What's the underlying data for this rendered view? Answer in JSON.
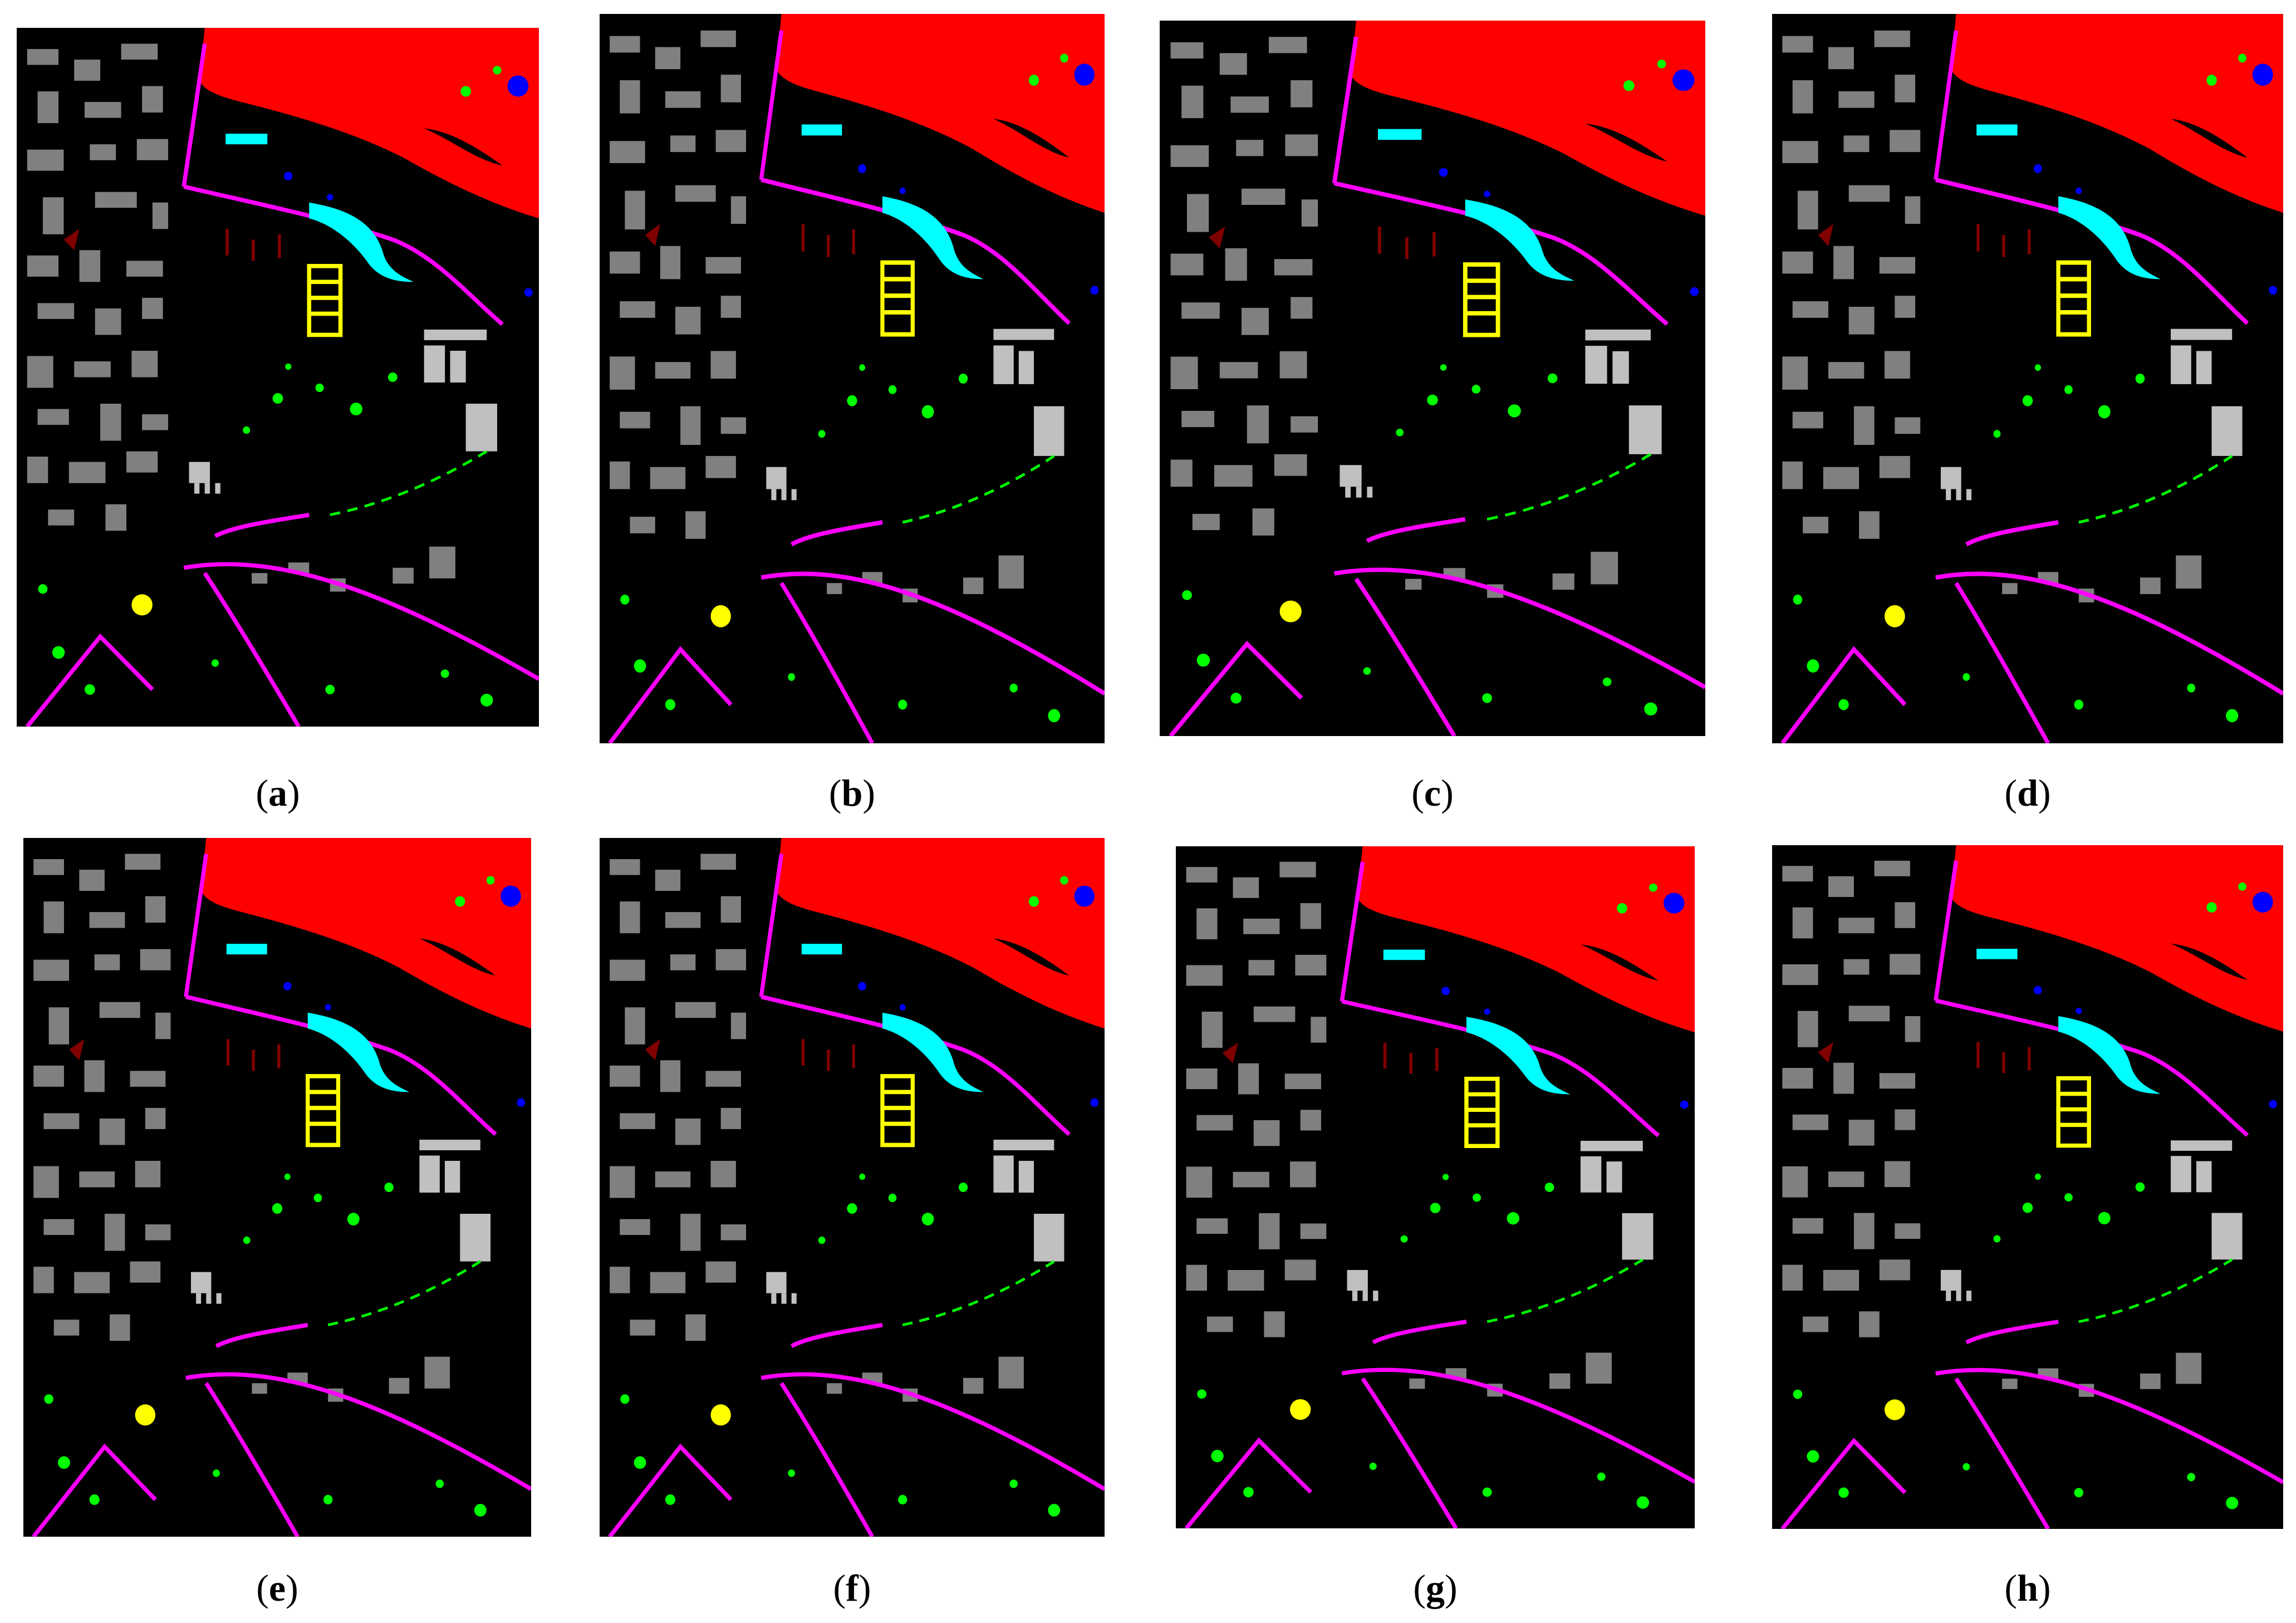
{
  "figure": {
    "panels": [
      {
        "letter": "a"
      },
      {
        "letter": "b"
      },
      {
        "letter": "c"
      },
      {
        "letter": "d"
      },
      {
        "letter": "e"
      },
      {
        "letter": "f"
      },
      {
        "letter": "g"
      },
      {
        "letter": "h"
      }
    ],
    "class_colors": {
      "water": "#ff0000",
      "trees": "#00ff00",
      "meadows": "#0000ff",
      "bricks": "#00ffff",
      "bare_soil": "#ffff00",
      "asphalt": "#ff00ff",
      "bitumen": "#800000",
      "tiles": "#808080",
      "shadows": "#c0c0c0",
      "background": "#000000"
    }
  }
}
